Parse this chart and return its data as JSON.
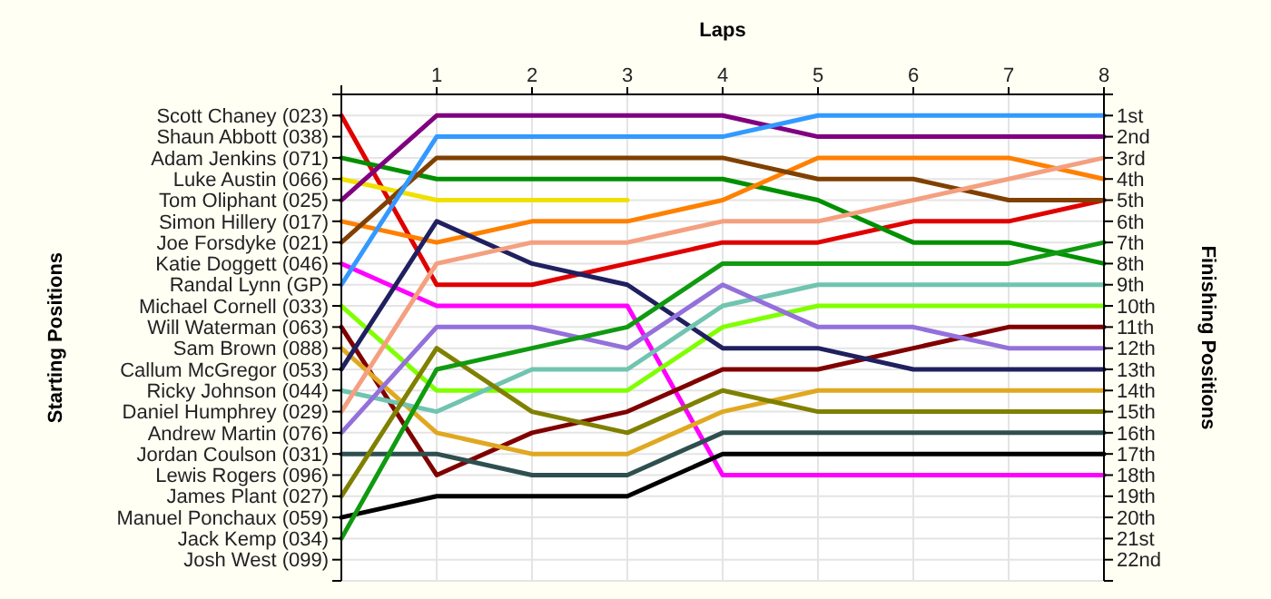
{
  "chart_data": {
    "type": "line",
    "xlabel": "Laps",
    "ylabel": "Finishing Positions",
    "x": [
      0,
      1,
      2,
      3,
      4,
      5,
      6,
      7,
      8
    ],
    "xlim": [
      0,
      8
    ],
    "xticks": [
      1,
      2,
      3,
      4,
      5,
      6,
      7,
      8
    ],
    "ylim": [
      23,
      0
    ],
    "yticks": [
      {
        "value": 0,
        "label": null
      },
      {
        "value": 1,
        "label": "1st"
      },
      {
        "value": 2,
        "label": "2nd"
      },
      {
        "value": 3,
        "label": "3rd"
      },
      {
        "value": 4,
        "label": "4th"
      },
      {
        "value": 5,
        "label": "5th"
      },
      {
        "value": 6,
        "label": "6th"
      },
      {
        "value": 7,
        "label": "7th"
      },
      {
        "value": 8,
        "label": "8th"
      },
      {
        "value": 9,
        "label": "9th"
      },
      {
        "value": 10,
        "label": "10th"
      },
      {
        "value": 11,
        "label": "11th"
      },
      {
        "value": 12,
        "label": "12th"
      },
      {
        "value": 13,
        "label": "13th"
      },
      {
        "value": 14,
        "label": "14th"
      },
      {
        "value": 15,
        "label": "15th"
      },
      {
        "value": 16,
        "label": "16th"
      },
      {
        "value": 17,
        "label": "17th"
      },
      {
        "value": 18,
        "label": "18th"
      },
      {
        "value": 19,
        "label": "19th"
      },
      {
        "value": 20,
        "label": "20th"
      },
      {
        "value": 21,
        "label": "21st"
      },
      {
        "value": 22,
        "label": "22nd"
      },
      {
        "value": 23,
        "label": null
      }
    ],
    "annotations": [
      "Starting Positions",
      "Scott Chaney (023)",
      "Shaun Abbott (038)",
      "Adam Jenkins (071)",
      "Luke Austin (066)",
      "Tom Oliphant (025)",
      "Simon Hillery (017)",
      "Joe Forsdyke (021)",
      "Katie Doggett (046)",
      "Randal Lynn (GP)",
      "Michael Cornell (033)",
      "Will Waterman (063)",
      "Sam Brown (088)",
      "Callum McGregor (053)",
      "Ricky Johnson (044)",
      "Daniel Humphrey (029)",
      "Andrew Martin (076)",
      "Jordan Coulson (031)",
      "Lewis Rogers (096)",
      "James Plant (027)",
      "Manuel Ponchaux (059)",
      "Jack Kemp (034)",
      "Josh West (099)"
    ],
    "grid": true,
    "marker": "none",
    "line_style": "solid",
    "series": [
      {
        "color": "#e00000",
        "values": [
          1,
          9,
          9,
          8,
          7,
          7,
          6,
          6,
          5
        ]
      },
      {
        "color": "#009000",
        "values": [
          3,
          4,
          4,
          4,
          4,
          5,
          7,
          7,
          8
        ]
      },
      {
        "color": "#f0e000",
        "values": [
          4,
          5,
          5,
          5,
          null,
          null,
          null,
          null,
          null
        ]
      },
      {
        "color": "#800080",
        "values": [
          5,
          1,
          1,
          1,
          1,
          2,
          2,
          2,
          2
        ]
      },
      {
        "color": "#ff8000",
        "values": [
          6,
          7,
          6,
          6,
          5,
          3,
          3,
          3,
          4
        ]
      },
      {
        "color": "#804000",
        "values": [
          7,
          3,
          3,
          3,
          3,
          4,
          4,
          5,
          5
        ]
      },
      {
        "color": "#ff00ff",
        "values": [
          8,
          10,
          10,
          10,
          18,
          18,
          18,
          18,
          18
        ]
      },
      {
        "color": "#3399ff",
        "values": [
          9,
          2,
          2,
          2,
          2,
          1,
          1,
          1,
          1
        ]
      },
      {
        "color": "#80ff00",
        "values": [
          10,
          14,
          14,
          14,
          11,
          10,
          10,
          10,
          10
        ]
      },
      {
        "color": "#800000",
        "values": [
          11,
          18,
          16,
          15,
          13,
          13,
          12,
          11,
          11
        ]
      },
      {
        "color": "#e0a820",
        "values": [
          12,
          16,
          17,
          17,
          15,
          14,
          14,
          14,
          14
        ]
      },
      {
        "color": "#202060",
        "values": [
          13,
          6,
          8,
          9,
          12,
          12,
          13,
          13,
          13
        ]
      },
      {
        "color": "#70c4b0",
        "values": [
          14,
          15,
          13,
          13,
          10,
          9,
          9,
          9,
          9
        ]
      },
      {
        "color": "#f4a080",
        "values": [
          15,
          8,
          7,
          7,
          6,
          6,
          5,
          4,
          3
        ]
      },
      {
        "color": "#9370db",
        "values": [
          16,
          11,
          11,
          12,
          9,
          11,
          11,
          12,
          12
        ]
      },
      {
        "color": "#2f4f4f",
        "values": [
          17,
          17,
          18,
          18,
          16,
          16,
          16,
          16,
          16
        ]
      },
      {
        "color": "#808000",
        "values": [
          19,
          12,
          15,
          16,
          14,
          15,
          15,
          15,
          15
        ]
      },
      {
        "color": "#000000",
        "values": [
          20,
          19,
          19,
          19,
          17,
          17,
          17,
          17,
          17
        ]
      },
      {
        "color": "#109a10",
        "values": [
          21,
          13,
          12,
          11,
          8,
          8,
          8,
          8,
          7
        ]
      }
    ]
  }
}
